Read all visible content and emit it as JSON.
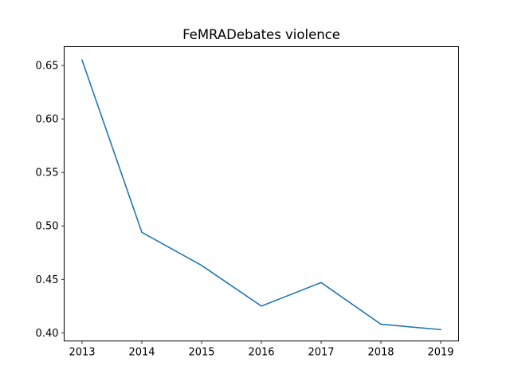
{
  "chart_data": {
    "type": "line",
    "title": "FeMRADebates violence",
    "xlabel": "",
    "ylabel": "",
    "x": [
      2013,
      2014,
      2015,
      2016,
      2017,
      2018,
      2019
    ],
    "series": [
      {
        "values": [
          0.655,
          0.494,
          0.463,
          0.425,
          0.447,
          0.408,
          0.403
        ],
        "color": "#1f77b4"
      }
    ],
    "xlim": [
      2012.7,
      2019.3
    ],
    "ylim": [
      0.3924,
      0.6676
    ],
    "xticks": [
      "2013",
      "2014",
      "2015",
      "2016",
      "2017",
      "2018",
      "2019"
    ],
    "yticks": [
      "0.40",
      "0.45",
      "0.50",
      "0.55",
      "0.60",
      "0.65"
    ],
    "ytick_values": [
      0.4,
      0.45,
      0.5,
      0.55,
      0.6,
      0.65
    ],
    "grid": false,
    "legend": "none"
  }
}
